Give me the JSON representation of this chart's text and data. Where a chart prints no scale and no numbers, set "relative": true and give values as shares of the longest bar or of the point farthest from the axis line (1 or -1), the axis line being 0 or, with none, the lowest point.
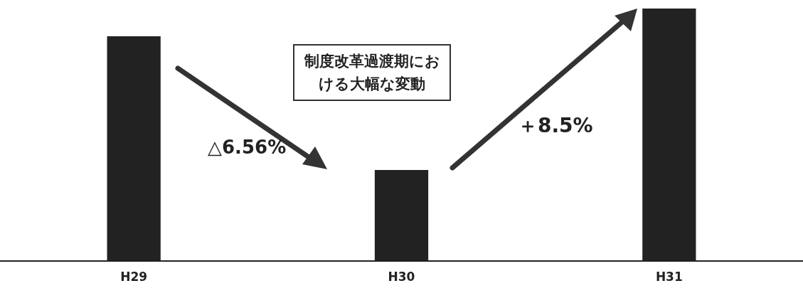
{
  "chart_data": {
    "type": "bar",
    "categories": [
      "H29",
      "H30",
      "H31"
    ],
    "values": [
      0.89,
      0.36,
      1
    ],
    "relative": true,
    "color": "#222222",
    "annotations": [
      "制度改革過渡期における大幅な変動",
      "△6.56%",
      "＋8.5%"
    ]
  }
}
